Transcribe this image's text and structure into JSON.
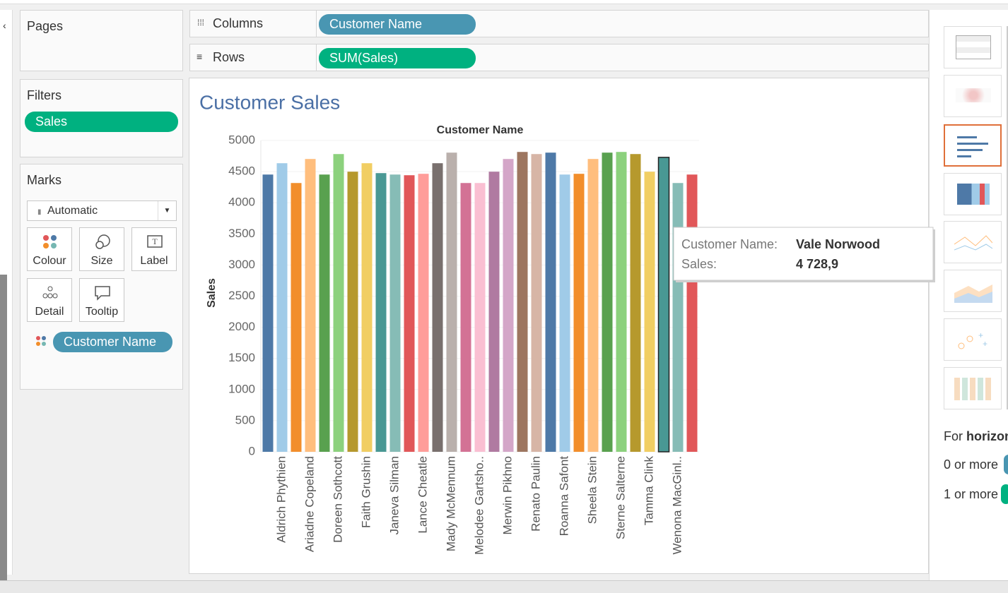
{
  "sidebar": {
    "pages": "Pages",
    "filters": {
      "title": "Filters",
      "pills": [
        "Sales"
      ]
    },
    "marks": {
      "title": "Marks",
      "type": "Automatic",
      "buttons": [
        "Colour",
        "Size",
        "Label",
        "Detail",
        "Tooltip"
      ],
      "pills": [
        "Customer Name"
      ]
    }
  },
  "shelves": [
    {
      "name": "Columns",
      "pill": "Customer Name"
    },
    {
      "name": "Rows",
      "pill": "SUM(Sales)"
    }
  ],
  "chart_data": {
    "type": "bar",
    "title": "Customer Sales",
    "x_label": "Customer Name",
    "y_label": "Sales",
    "categories": [
      null,
      "Aldrich Phythien",
      null,
      "Ariadne Copeland",
      null,
      "Doreen Sothcott",
      null,
      "Faith Grushin",
      null,
      "Janeva Silman",
      null,
      "Lance Cheatle",
      null,
      "Mady McMennum",
      null,
      "Melodee Gartsho..",
      null,
      "Merwin Pikhno",
      null,
      "Renato Paulin",
      null,
      "Roanna Safont",
      null,
      "Sheela Stein",
      null,
      "Sterne Salterne",
      null,
      "Tamma Clink",
      null,
      "Wenona MacGinl..",
      null
    ],
    "values": [
      4453,
      4635,
      4317,
      4703,
      4453,
      4782,
      4499,
      4635,
      4476,
      4453,
      4442,
      4465,
      4635,
      4805,
      4317,
      4317,
      4499,
      4703,
      4816,
      4782,
      4805,
      4453,
      4465,
      4703,
      4805,
      4816,
      4782,
      4499,
      4728.9,
      4317,
      4453
    ],
    "colors": [
      "#4e79a7",
      "#a0cbe8",
      "#f28e2b",
      "#ffbe7d",
      "#59a14f",
      "#8cd17d",
      "#b6992d",
      "#f1ce63",
      "#499894",
      "#86bcb6",
      "#e15759",
      "#ff9d9a",
      "#79706e",
      "#bab0ac",
      "#d37295",
      "#fabfd2",
      "#b07aa1",
      "#d4a6c8",
      "#9d7660",
      "#d7b5a6"
    ],
    "ylim": [
      0,
      5000
    ],
    "yticks": [
      0,
      500,
      1000,
      1500,
      2000,
      2500,
      3000,
      3500,
      4000,
      4500,
      5000
    ],
    "grid": true,
    "tooltip": {
      "index": 28,
      "fields": [
        {
          "label": "Customer Name:",
          "value": "Vale Norwood"
        },
        {
          "label": "Sales:",
          "value": "4 728,9"
        }
      ]
    }
  },
  "show_me": {
    "hint": [
      "For",
      "horizon"
    ],
    "rows": [
      "0 or more",
      "1 or more"
    ]
  }
}
